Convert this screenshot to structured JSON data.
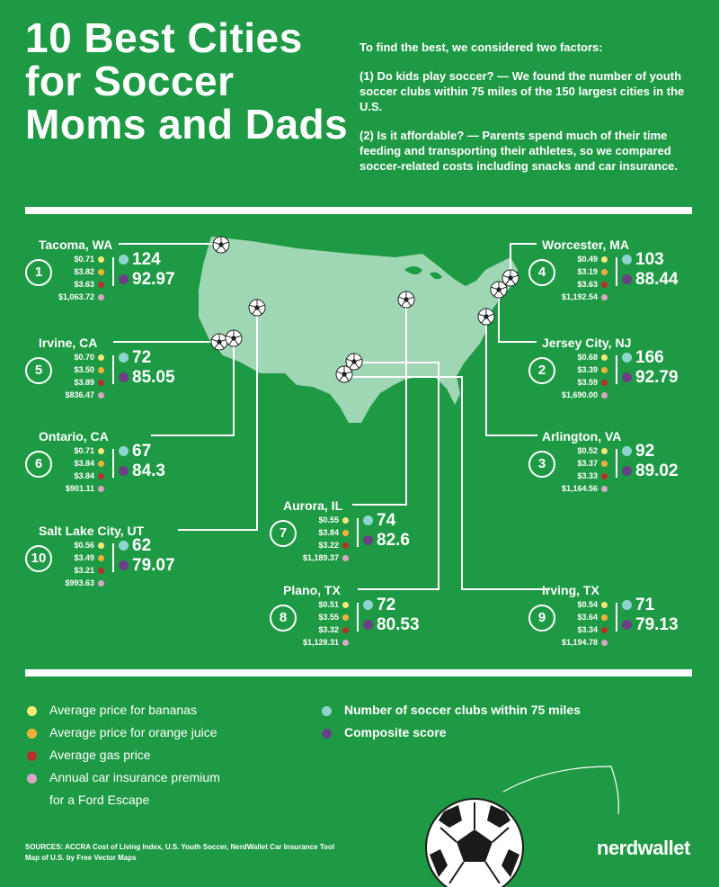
{
  "title": "10 Best Cities for Soccer Moms and Dads",
  "intro": {
    "lead": "To find the best, we considered two factors:",
    "factor1": "(1) Do kids play soccer? — We found the number of youth soccer clubs within 75 miles of the 150 largest cities in the U.S.",
    "factor2": "(2) Is it affordable? — Parents spend much of their time feeding and transporting their athletes, so we compared soccer-related costs including snacks and car insurance."
  },
  "colors": {
    "background": "#1f9a44",
    "map": "#9fd6b3",
    "bananas": "#f6e97a",
    "orange_juice": "#f2b13c",
    "gas": "#b5312a",
    "insurance": "#d9a7c4",
    "clubs": "#8fd5cf",
    "composite": "#6a3f86"
  },
  "cities": [
    {
      "rank": "1",
      "name": "Tacoma, WA",
      "bananas": "$0.71",
      "oj": "$3.82",
      "gas": "$3.63",
      "insurance": "$1,063.72",
      "clubs": "124",
      "score": "92.97"
    },
    {
      "rank": "2",
      "name": "Jersey City, NJ",
      "bananas": "$0.68",
      "oj": "$3.39",
      "gas": "$3.59",
      "insurance": "$1,690.00",
      "clubs": "166",
      "score": "92.79"
    },
    {
      "rank": "3",
      "name": "Arlington, VA",
      "bananas": "$0.52",
      "oj": "$3.37",
      "gas": "$3.33",
      "insurance": "$1,164.56",
      "clubs": "92",
      "score": "89.02"
    },
    {
      "rank": "4",
      "name": "Worcester, MA",
      "bananas": "$0.49",
      "oj": "$3.19",
      "gas": "$3.63",
      "insurance": "$1,192.54",
      "clubs": "103",
      "score": "88.44"
    },
    {
      "rank": "5",
      "name": "Irvine, CA",
      "bananas": "$0.70",
      "oj": "$3.50",
      "gas": "$3.89",
      "insurance": "$836.47",
      "clubs": "72",
      "score": "85.05"
    },
    {
      "rank": "6",
      "name": "Ontario, CA",
      "bananas": "$0.71",
      "oj": "$3.84",
      "gas": "$3.84",
      "insurance": "$901.11",
      "clubs": "67",
      "score": "84.3"
    },
    {
      "rank": "7",
      "name": "Aurora, IL",
      "bananas": "$0.55",
      "oj": "$3.84",
      "gas": "$3.22",
      "insurance": "$1,189.37",
      "clubs": "74",
      "score": "82.6"
    },
    {
      "rank": "8",
      "name": "Plano, TX",
      "bananas": "$0.51",
      "oj": "$3.55",
      "gas": "$3.32",
      "insurance": "$1,128.31",
      "clubs": "72",
      "score": "80.53"
    },
    {
      "rank": "9",
      "name": "Irving, TX",
      "bananas": "$0.54",
      "oj": "$3.64",
      "gas": "$3.34",
      "insurance": "$1,194.78",
      "clubs": "71",
      "score": "79.13"
    },
    {
      "rank": "10",
      "name": "Salt Lake City, UT",
      "bananas": "$0.56",
      "oj": "$3.49",
      "gas": "$3.21",
      "insurance": "$993.63",
      "clubs": "62",
      "score": "79.07"
    }
  ],
  "legend": {
    "bananas": "Average price for bananas",
    "oj": "Average price for orange juice",
    "gas": "Average gas price",
    "insurance_line1": "Annual car insurance premium",
    "insurance_line2": "for a Ford Escape",
    "clubs": "Number of soccer clubs within 75 miles",
    "composite": "Composite score"
  },
  "sources_line1": "SOURCES: ACCRA Cost of Living Index, U.S. Youth Soccer, NerdWallet Car Insurance Tool",
  "sources_line2": "Map of U.S. by Free Vector Maps",
  "logo": "nerdwallet"
}
